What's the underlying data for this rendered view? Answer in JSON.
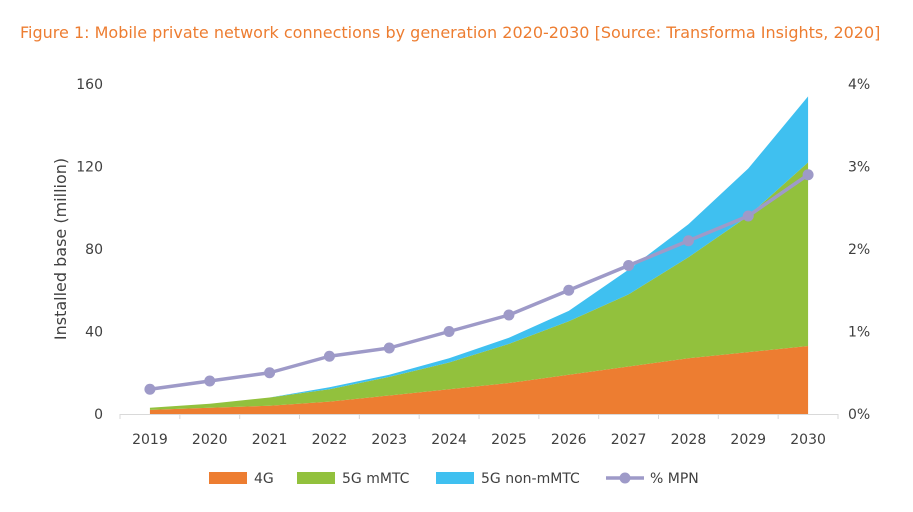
{
  "chart_data": {
    "type": "area",
    "title": "Figure 1: Mobile private network connections by generation 2020-2030 [Source: Transforma Insights, 2020]",
    "ylabel": "Installed base (million)",
    "y2label": "",
    "x": [
      "2019",
      "2020",
      "2021",
      "2022",
      "2023",
      "2024",
      "2025",
      "2026",
      "2027",
      "2028",
      "2029",
      "2030"
    ],
    "ylim": [
      0,
      160
    ],
    "yticks": [
      0,
      40,
      80,
      120,
      160
    ],
    "y2lim": [
      0,
      4
    ],
    "y2ticks": [
      "0%",
      "1%",
      "2%",
      "3%",
      "4%"
    ],
    "stacked": true,
    "grid": false,
    "legend_position": "bottom",
    "series": [
      {
        "name": "4G",
        "type": "area",
        "color": "#ED7D31",
        "values": [
          2,
          3,
          4,
          6,
          9,
          12,
          15,
          19,
          23,
          27,
          30,
          33
        ]
      },
      {
        "name": "5G mMTC",
        "type": "area",
        "color": "#92C13D",
        "values": [
          1,
          2,
          4,
          6,
          9,
          13,
          19,
          26,
          35,
          49,
          66,
          89
        ]
      },
      {
        "name": "5G non-mMTC",
        "type": "area",
        "color": "#3FC0F0",
        "values": [
          0,
          0,
          0,
          1,
          1,
          2,
          3,
          5,
          12,
          16,
          23,
          32
        ]
      },
      {
        "name": "% MPN",
        "type": "line",
        "axis": "right",
        "color": "#9E9AC8",
        "values": [
          0.3,
          0.4,
          0.5,
          0.7,
          0.8,
          1.0,
          1.2,
          1.5,
          1.8,
          2.1,
          2.4,
          2.9
        ]
      }
    ]
  }
}
